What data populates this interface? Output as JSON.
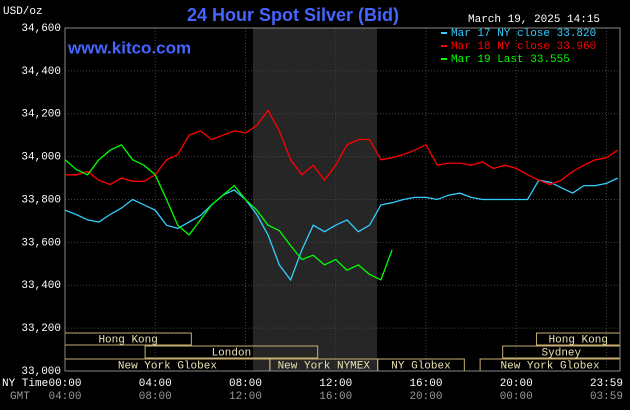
{
  "chart_data": {
    "type": "line",
    "title": "24 Hour Spot Silver (Bid)",
    "y_unit": "USD/oz",
    "website": "www.kitco.com",
    "timestamp": "March 19, 2025 14:15",
    "x_axis_label": "NY Time",
    "x2_axis_label": "GMT",
    "xlim": [
      0,
      24.6
    ],
    "ylim": [
      33000,
      34600
    ],
    "xticks": [
      {
        "value": 0,
        "label": "00:00"
      },
      {
        "value": 4,
        "label": "04:00"
      },
      {
        "value": 8,
        "label": "08:00"
      },
      {
        "value": 12,
        "label": "12:00"
      },
      {
        "value": 16,
        "label": "16:00"
      },
      {
        "value": 20,
        "label": "20:00"
      },
      {
        "value": 24,
        "label": "23:59"
      }
    ],
    "gmt_labels": [
      "04:00",
      "08:00",
      "12:00",
      "16:00",
      "20:00",
      "00:00",
      "03:59"
    ],
    "yticks": [
      {
        "value": 33000,
        "label": "33,000"
      },
      {
        "value": 33200,
        "label": "33,200"
      },
      {
        "value": 33400,
        "label": "33,400"
      },
      {
        "value": 33600,
        "label": "33,600"
      },
      {
        "value": 33800,
        "label": "33,800"
      },
      {
        "value": 34000,
        "label": "34,000"
      },
      {
        "value": 34200,
        "label": "34,200"
      },
      {
        "value": 34400,
        "label": "34,400"
      },
      {
        "value": 34600,
        "label": "34,600"
      }
    ],
    "grid": true,
    "highlight": [
      8.33,
      13.83
    ],
    "sessions": [
      {
        "label": "Hong Kong",
        "row": 0,
        "start": 0,
        "end": 5.6
      },
      {
        "label": "London",
        "row": 1,
        "start": 3.55,
        "end": 11.2
      },
      {
        "label": "New York Globex",
        "row": 2,
        "start": 0,
        "end": 9.08
      },
      {
        "label": "New York NYMEX",
        "row": 2,
        "start": 9.08,
        "end": 13.86
      },
      {
        "label": "NY Globex",
        "row": 2,
        "start": 13.86,
        "end": 17.7
      },
      {
        "label": "Hong Kong",
        "row": 0,
        "start": 20.9,
        "end": 24.6
      },
      {
        "label": "Sydney",
        "row": 1,
        "start": 19.4,
        "end": 24.6
      },
      {
        "label": "New York Globex",
        "row": 2,
        "start": 18.4,
        "end": 24.6
      }
    ],
    "x": [
      0,
      0.5,
      1,
      1.5,
      2,
      2.5,
      3,
      3.5,
      4,
      4.5,
      5,
      5.5,
      6,
      6.5,
      7,
      7.5,
      8,
      8.5,
      9,
      9.5,
      10,
      10.5,
      11,
      11.5,
      12,
      12.5,
      13,
      13.5,
      14,
      14.5,
      15,
      15.5,
      16,
      16.5,
      17,
      17.5,
      18,
      18.5,
      19,
      19.5,
      20,
      20.5,
      21,
      21.5,
      22,
      22.5,
      23,
      23.5,
      24,
      24.5
    ],
    "series": [
      {
        "name": "Mar 17 NY close 33.820",
        "color": "#33ccff",
        "values": [
          33750,
          33730,
          33705,
          33695,
          33730,
          33760,
          33800,
          33775,
          33750,
          33680,
          33665,
          33695,
          33725,
          33775,
          33820,
          33845,
          33800,
          33730,
          33635,
          33495,
          33425,
          33565,
          33680,
          33650,
          33680,
          33705,
          33650,
          33680,
          33775,
          33785,
          33800,
          33810,
          33810,
          33800,
          33820,
          33830,
          33810,
          33800,
          33800,
          33800,
          33800,
          33800,
          33890,
          33880,
          33855,
          33830,
          33865,
          33865,
          33875,
          33900
        ]
      },
      {
        "name": "Mar 18 NY close 33.960",
        "color": "#ff0000",
        "values": [
          33915,
          33915,
          33930,
          33890,
          33870,
          33900,
          33885,
          33885,
          33915,
          33985,
          34010,
          34100,
          34120,
          34080,
          34100,
          34120,
          34110,
          34145,
          34215,
          34120,
          33985,
          33915,
          33960,
          33890,
          33960,
          34055,
          34080,
          34080,
          33985,
          33995,
          34010,
          34030,
          34055,
          33960,
          33970,
          33970,
          33960,
          33975,
          33945,
          33960,
          33945,
          33915,
          33890,
          33870,
          33890,
          33930,
          33960,
          33985,
          33995,
          34030
        ]
      },
      {
        "name": "Mar 19 Last 33.555",
        "color": "#00ff00",
        "values": [
          33985,
          33940,
          33915,
          33985,
          34030,
          34055,
          33985,
          33960,
          33915,
          33800,
          33680,
          33635,
          33705,
          33775,
          33820,
          33865,
          33800,
          33750,
          33680,
          33655,
          33585,
          33520,
          33540,
          33495,
          33520,
          33470,
          33495,
          33450,
          33425,
          33565,
          null,
          null,
          null,
          null,
          null,
          null,
          null,
          null,
          null,
          null,
          null,
          null,
          null,
          null,
          null,
          null,
          null,
          null,
          null,
          null
        ]
      }
    ]
  }
}
